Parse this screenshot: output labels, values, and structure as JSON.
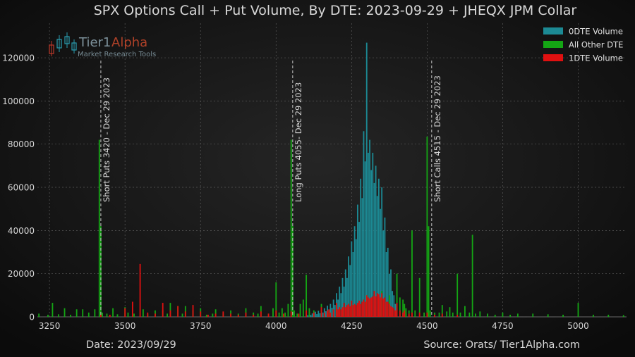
{
  "chart_data": {
    "type": "bar",
    "title": "SPX Options Call + Put Volume, By DTE: 2023-09-29 + JHEQX JPM Collar",
    "xlabel": "",
    "ylabel": "",
    "xlim": [
      3210,
      5160
    ],
    "ylim": [
      0,
      136000
    ],
    "x_ticks": [
      3250,
      3500,
      3750,
      4000,
      4250,
      4500,
      4750,
      5000
    ],
    "y_ticks": [
      0,
      20000,
      40000,
      60000,
      80000,
      100000,
      120000
    ],
    "grid": true,
    "legend_position": "top-right",
    "colors": {
      "background": "#0b0b0b",
      "grid": "#5a5a5a",
      "text": "#d8d8d8",
      "odte": "#1c8a94",
      "other": "#14a514",
      "one_dte": "#e01010",
      "annotation_line": "#c8c8c8"
    },
    "series": [
      {
        "name": "0DTE Volume",
        "points": [
          [
            4100,
            1500
          ],
          [
            4105,
            800
          ],
          [
            4110,
            2200
          ],
          [
            4115,
            900
          ],
          [
            4120,
            1600
          ],
          [
            4125,
            1100
          ],
          [
            4130,
            2400
          ],
          [
            4135,
            1300
          ],
          [
            4140,
            2800
          ],
          [
            4145,
            1700
          ],
          [
            4150,
            3200
          ],
          [
            4155,
            2000
          ],
          [
            4160,
            4000
          ],
          [
            4165,
            2600
          ],
          [
            4170,
            5200
          ],
          [
            4175,
            3400
          ],
          [
            4180,
            6000
          ],
          [
            4185,
            4200
          ],
          [
            4190,
            8000
          ],
          [
            4195,
            5500
          ],
          [
            4200,
            11000
          ],
          [
            4205,
            8000
          ],
          [
            4210,
            14000
          ],
          [
            4215,
            11000
          ],
          [
            4220,
            18000
          ],
          [
            4225,
            14000
          ],
          [
            4230,
            22000
          ],
          [
            4235,
            18000
          ],
          [
            4240,
            28000
          ],
          [
            4245,
            24000
          ],
          [
            4250,
            35000
          ],
          [
            4255,
            30000
          ],
          [
            4260,
            42000
          ],
          [
            4265,
            36000
          ],
          [
            4270,
            52000
          ],
          [
            4275,
            44000
          ],
          [
            4280,
            64000
          ],
          [
            4285,
            55000
          ],
          [
            4290,
            86000
          ],
          [
            4295,
            72000
          ],
          [
            4300,
            127000
          ],
          [
            4305,
            76000
          ],
          [
            4310,
            82000
          ],
          [
            4315,
            68000
          ],
          [
            4320,
            76000
          ],
          [
            4325,
            62000
          ],
          [
            4330,
            70000
          ],
          [
            4335,
            56000
          ],
          [
            4340,
            64000
          ],
          [
            4345,
            50000
          ],
          [
            4350,
            60000
          ],
          [
            4355,
            40000
          ],
          [
            4360,
            46000
          ],
          [
            4365,
            30000
          ],
          [
            4370,
            32000
          ],
          [
            4375,
            20000
          ],
          [
            4380,
            22000
          ],
          [
            4385,
            12000
          ],
          [
            4390,
            10000
          ],
          [
            4395,
            6000
          ],
          [
            4400,
            5000
          ],
          [
            4410,
            3000
          ],
          [
            4420,
            2000
          ],
          [
            4430,
            1500
          ],
          [
            4440,
            1000
          ]
        ]
      },
      {
        "name": "All Other DTE",
        "points": [
          [
            3215,
            1500
          ],
          [
            3245,
            1000
          ],
          [
            3260,
            6500
          ],
          [
            3280,
            1200
          ],
          [
            3300,
            4000
          ],
          [
            3320,
            1000
          ],
          [
            3340,
            3500
          ],
          [
            3360,
            3500
          ],
          [
            3380,
            2000
          ],
          [
            3400,
            3500
          ],
          [
            3415,
            82000
          ],
          [
            3420,
            42000
          ],
          [
            3425,
            2000
          ],
          [
            3440,
            1500
          ],
          [
            3460,
            4000
          ],
          [
            3475,
            1200
          ],
          [
            3500,
            4500
          ],
          [
            3510,
            2000
          ],
          [
            3530,
            1500
          ],
          [
            3560,
            3500
          ],
          [
            3575,
            1200
          ],
          [
            3600,
            3000
          ],
          [
            3625,
            3000
          ],
          [
            3640,
            1500
          ],
          [
            3650,
            6500
          ],
          [
            3675,
            5000
          ],
          [
            3690,
            1500
          ],
          [
            3700,
            5000
          ],
          [
            3725,
            3000
          ],
          [
            3750,
            4000
          ],
          [
            3770,
            1000
          ],
          [
            3790,
            1500
          ],
          [
            3800,
            3500
          ],
          [
            3825,
            1500
          ],
          [
            3850,
            3000
          ],
          [
            3875,
            1500
          ],
          [
            3900,
            4000
          ],
          [
            3925,
            2000
          ],
          [
            3940,
            1500
          ],
          [
            3950,
            5000
          ],
          [
            3975,
            1500
          ],
          [
            3990,
            4000
          ],
          [
            4000,
            16000
          ],
          [
            4010,
            2000
          ],
          [
            4020,
            4000
          ],
          [
            4030,
            2000
          ],
          [
            4040,
            6000
          ],
          [
            4050,
            82000
          ],
          [
            4055,
            42000
          ],
          [
            4060,
            3000
          ],
          [
            4070,
            1500
          ],
          [
            4080,
            6000
          ],
          [
            4090,
            8000
          ],
          [
            4100,
            19500
          ],
          [
            4110,
            4000
          ],
          [
            4125,
            3000
          ],
          [
            4150,
            6000
          ],
          [
            4175,
            3000
          ],
          [
            4200,
            5000
          ],
          [
            4225,
            4000
          ],
          [
            4250,
            6000
          ],
          [
            4300,
            10000
          ],
          [
            4350,
            12000
          ],
          [
            4375,
            10000
          ],
          [
            4400,
            20000
          ],
          [
            4410,
            9000
          ],
          [
            4420,
            8000
          ],
          [
            4425,
            6000
          ],
          [
            4430,
            4000
          ],
          [
            4440,
            3000
          ],
          [
            4450,
            40000
          ],
          [
            4460,
            3000
          ],
          [
            4475,
            18000
          ],
          [
            4490,
            2000
          ],
          [
            4500,
            83500
          ],
          [
            4505,
            42000
          ],
          [
            4510,
            3000
          ],
          [
            4525,
            2000
          ],
          [
            4540,
            2000
          ],
          [
            4550,
            5500
          ],
          [
            4565,
            2500
          ],
          [
            4575,
            4500
          ],
          [
            4585,
            2000
          ],
          [
            4600,
            20000
          ],
          [
            4610,
            2000
          ],
          [
            4625,
            5000
          ],
          [
            4640,
            2000
          ],
          [
            4650,
            38000
          ],
          [
            4660,
            1500
          ],
          [
            4675,
            2500
          ],
          [
            4700,
            1500
          ],
          [
            4725,
            1000
          ],
          [
            4750,
            2000
          ],
          [
            4775,
            1000
          ],
          [
            4800,
            1500
          ],
          [
            4850,
            1500
          ],
          [
            4900,
            1200
          ],
          [
            4950,
            1000
          ],
          [
            5000,
            6500
          ],
          [
            5050,
            1000
          ],
          [
            5100,
            1000
          ],
          [
            5150,
            800
          ]
        ]
      },
      {
        "name": "1DTE Volume",
        "points": [
          [
            3420,
            1000
          ],
          [
            3450,
            1000
          ],
          [
            3500,
            4000
          ],
          [
            3525,
            7000
          ],
          [
            3550,
            24500
          ],
          [
            3575,
            2000
          ],
          [
            3600,
            1500
          ],
          [
            3625,
            6500
          ],
          [
            3650,
            3000
          ],
          [
            3675,
            5000
          ],
          [
            3700,
            2500
          ],
          [
            3725,
            5500
          ],
          [
            3750,
            2500
          ],
          [
            3775,
            1000
          ],
          [
            3800,
            1500
          ],
          [
            3825,
            2500
          ],
          [
            3850,
            1500
          ],
          [
            3875,
            1000
          ],
          [
            3900,
            2000
          ],
          [
            3925,
            1000
          ],
          [
            3950,
            2500
          ],
          [
            3975,
            1500
          ],
          [
            4000,
            3000
          ],
          [
            4025,
            1500
          ],
          [
            4050,
            2500
          ],
          [
            4075,
            1500
          ],
          [
            4100,
            3000
          ],
          [
            4125,
            2000
          ],
          [
            4150,
            4500
          ],
          [
            4160,
            2000
          ],
          [
            4170,
            3000
          ],
          [
            4175,
            3500
          ],
          [
            4180,
            2000
          ],
          [
            4190,
            3500
          ],
          [
            4200,
            6500
          ],
          [
            4205,
            3500
          ],
          [
            4210,
            4500
          ],
          [
            4215,
            3500
          ],
          [
            4220,
            4500
          ],
          [
            4225,
            6500
          ],
          [
            4230,
            4500
          ],
          [
            4235,
            5500
          ],
          [
            4240,
            6000
          ],
          [
            4245,
            5000
          ],
          [
            4250,
            7500
          ],
          [
            4255,
            5500
          ],
          [
            4260,
            6000
          ],
          [
            4265,
            5500
          ],
          [
            4270,
            6500
          ],
          [
            4275,
            7500
          ],
          [
            4280,
            6000
          ],
          [
            4285,
            7000
          ],
          [
            4290,
            8000
          ],
          [
            4295,
            7000
          ],
          [
            4300,
            10000
          ],
          [
            4305,
            9000
          ],
          [
            4310,
            8500
          ],
          [
            4315,
            9000
          ],
          [
            4320,
            9500
          ],
          [
            4325,
            12000
          ],
          [
            4330,
            9500
          ],
          [
            4335,
            11000
          ],
          [
            4340,
            10500
          ],
          [
            4345,
            9000
          ],
          [
            4350,
            11000
          ],
          [
            4355,
            8500
          ],
          [
            4360,
            9000
          ],
          [
            4365,
            7000
          ],
          [
            4370,
            7000
          ],
          [
            4375,
            6000
          ],
          [
            4380,
            5000
          ],
          [
            4385,
            4500
          ],
          [
            4390,
            4000
          ],
          [
            4395,
            3000
          ],
          [
            4400,
            6500
          ],
          [
            4410,
            3000
          ],
          [
            4420,
            2000
          ],
          [
            4425,
            3000
          ],
          [
            4440,
            1500
          ],
          [
            4450,
            2000
          ],
          [
            4475,
            2000
          ],
          [
            4500,
            2000
          ],
          [
            4525,
            1000
          ],
          [
            4550,
            1500
          ],
          [
            4600,
            1000
          ]
        ]
      }
    ],
    "annotations": [
      {
        "x": 3420,
        "text": "Short Puts 3420 - Dec 29 2023"
      },
      {
        "x": 4055,
        "text": "Long Puts 4055- Dec 29 2023"
      },
      {
        "x": 4515,
        "text": "Short Calls 4515 - Dec 29 2023"
      }
    ],
    "footer_left": "Date: 2023/09/29",
    "footer_right": "Source: Orats/ Tier1Alpha.com",
    "watermark": {
      "brand_main": "Tier1",
      "brand_accent": "Alpha",
      "tagline": "Market  Research Tools",
      "icon": "candlestick-icon"
    }
  }
}
